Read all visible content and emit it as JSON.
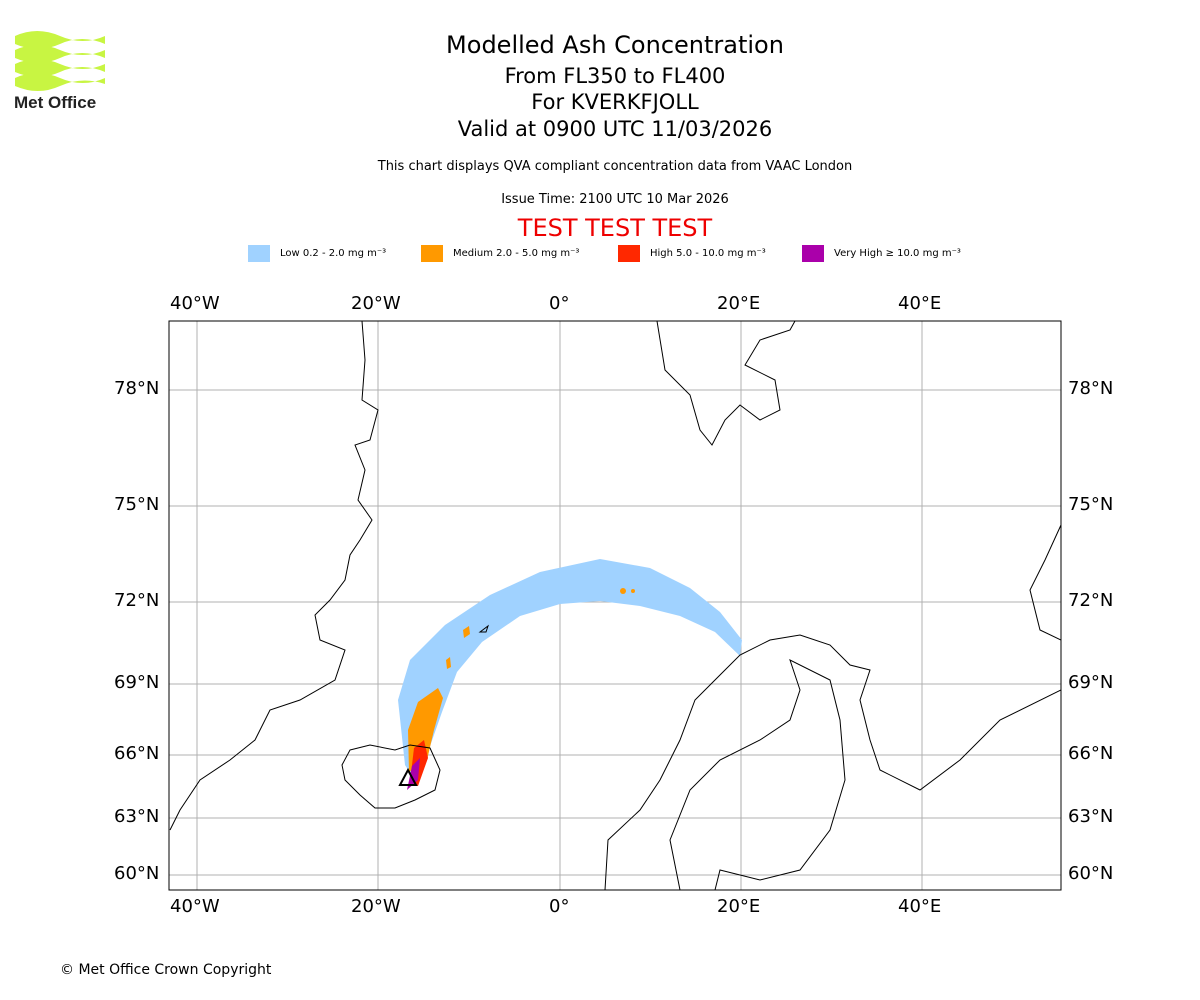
{
  "logo": {
    "text": "Met Office",
    "color": "#c8f542"
  },
  "title": {
    "line1": "Modelled Ash Concentration",
    "line2": "From FL350 to FL400",
    "line3": "For KVERKFJOLL",
    "line4": "Valid at 0900 UTC 11/03/2026",
    "subtitle": "This chart displays QVA compliant concentration data from VAAC London",
    "issue": "Issue Time: 2100 UTC 10 Mar 2026",
    "test": "TEST TEST TEST"
  },
  "legend": [
    {
      "label": "Low 0.2 - 2.0 mg m⁻³",
      "color": "#a0d2ff"
    },
    {
      "label": "Medium 2.0 - 5.0 mg m⁻³",
      "color": "#ff9900"
    },
    {
      "label": "High 5.0 - 10.0 mg m⁻³",
      "color": "#ff2800"
    },
    {
      "label": "Very High ≥ 10.0 mg m⁻³",
      "color": "#aa00aa"
    }
  ],
  "axes": {
    "lon_labels": [
      "40°W",
      "20°W",
      "0°",
      "20°E",
      "40°E"
    ],
    "lat_labels": [
      "78°N",
      "75°N",
      "72°N",
      "69°N",
      "66°N",
      "63°N",
      "60°N"
    ]
  },
  "footer": {
    "copyright": "© Met Office Crown Copyright"
  }
}
